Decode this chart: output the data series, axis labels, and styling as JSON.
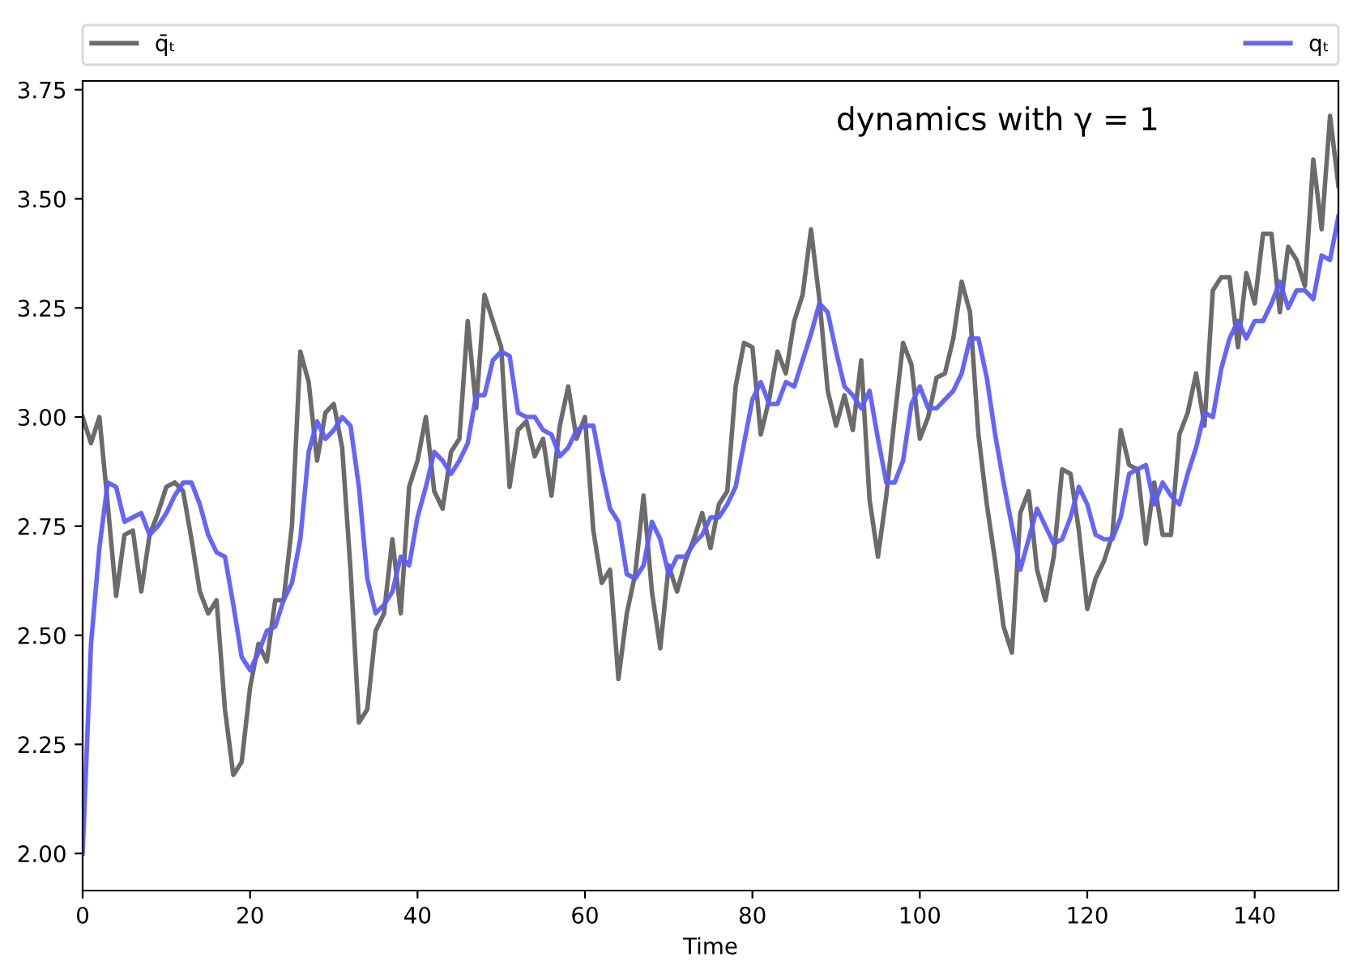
{
  "chart_data": {
    "type": "line",
    "xlabel": "Time",
    "annotations": [
      "dynamics with γ = 1"
    ],
    "x": [
      0,
      1,
      2,
      3,
      4,
      5,
      6,
      7,
      8,
      9,
      10,
      11,
      12,
      13,
      14,
      15,
      16,
      17,
      18,
      19,
      20,
      21,
      22,
      23,
      24,
      25,
      26,
      27,
      28,
      29,
      30,
      31,
      32,
      33,
      34,
      35,
      36,
      37,
      38,
      39,
      40,
      41,
      42,
      43,
      44,
      45,
      46,
      47,
      48,
      49,
      50,
      51,
      52,
      53,
      54,
      55,
      56,
      57,
      58,
      59,
      60,
      61,
      62,
      63,
      64,
      65,
      66,
      67,
      68,
      69,
      70,
      71,
      72,
      73,
      74,
      75,
      76,
      77,
      78,
      79,
      80,
      81,
      82,
      83,
      84,
      85,
      86,
      87,
      88,
      89,
      90,
      91,
      92,
      93,
      94,
      95,
      96,
      97,
      98,
      99,
      100,
      101,
      102,
      103,
      104,
      105,
      106,
      107,
      108,
      109,
      110,
      111,
      112,
      113,
      114,
      115,
      116,
      117,
      118,
      119,
      120,
      121,
      122,
      123,
      124,
      125,
      126,
      127,
      128,
      129,
      130,
      131,
      132,
      133,
      134,
      135,
      136,
      137,
      138,
      139,
      140,
      141,
      142,
      143,
      144,
      145,
      146,
      147,
      148,
      149,
      150
    ],
    "series": [
      {
        "name": "q̄ₜ",
        "color": "#636363",
        "values": [
          3.0,
          2.94,
          3.0,
          2.8,
          2.59,
          2.73,
          2.74,
          2.6,
          2.73,
          2.78,
          2.84,
          2.85,
          2.83,
          2.72,
          2.6,
          2.55,
          2.58,
          2.33,
          2.18,
          2.21,
          2.38,
          2.48,
          2.44,
          2.58,
          2.58,
          2.75,
          3.15,
          3.08,
          2.9,
          3.01,
          3.03,
          2.93,
          2.65,
          2.3,
          2.33,
          2.51,
          2.55,
          2.72,
          2.55,
          2.84,
          2.9,
          3.0,
          2.83,
          2.79,
          2.92,
          2.95,
          3.22,
          3.02,
          3.28,
          3.22,
          3.16,
          2.84,
          2.97,
          2.99,
          2.91,
          2.95,
          2.82,
          2.98,
          3.07,
          2.95,
          3.0,
          2.74,
          2.62,
          2.65,
          2.4,
          2.55,
          2.64,
          2.82,
          2.6,
          2.47,
          2.66,
          2.6,
          2.67,
          2.72,
          2.78,
          2.7,
          2.8,
          2.83,
          3.07,
          3.17,
          3.16,
          2.96,
          3.04,
          3.15,
          3.1,
          3.22,
          3.28,
          3.43,
          3.27,
          3.06,
          2.98,
          3.05,
          2.97,
          3.13,
          2.81,
          2.68,
          2.82,
          3.0,
          3.17,
          3.12,
          2.95,
          3.0,
          3.09,
          3.1,
          3.18,
          3.31,
          3.24,
          2.96,
          2.8,
          2.67,
          2.52,
          2.46,
          2.78,
          2.83,
          2.65,
          2.58,
          2.68,
          2.88,
          2.87,
          2.74,
          2.56,
          2.63,
          2.67,
          2.73,
          2.97,
          2.89,
          2.88,
          2.71,
          2.85,
          2.73,
          2.73,
          2.96,
          3.01,
          3.1,
          2.98,
          3.29,
          3.32,
          3.32,
          3.16,
          3.33,
          3.26,
          3.42,
          3.42,
          3.24,
          3.39,
          3.36,
          3.3,
          3.59,
          3.43,
          3.69,
          3.53
        ]
      },
      {
        "name": "qₜ",
        "color": "#5c5cff",
        "values": [
          2.0,
          2.48,
          2.7,
          2.85,
          2.84,
          2.76,
          2.77,
          2.78,
          2.73,
          2.75,
          2.78,
          2.82,
          2.85,
          2.85,
          2.8,
          2.73,
          2.69,
          2.68,
          2.57,
          2.45,
          2.42,
          2.46,
          2.51,
          2.52,
          2.58,
          2.62,
          2.72,
          2.92,
          2.99,
          2.95,
          2.97,
          3.0,
          2.98,
          2.84,
          2.63,
          2.55,
          2.57,
          2.6,
          2.68,
          2.66,
          2.77,
          2.84,
          2.92,
          2.9,
          2.87,
          2.9,
          2.94,
          3.05,
          3.05,
          3.13,
          3.15,
          3.14,
          3.01,
          3.0,
          3.0,
          2.97,
          2.96,
          2.91,
          2.93,
          2.97,
          2.98,
          2.98,
          2.88,
          2.79,
          2.76,
          2.64,
          2.63,
          2.66,
          2.76,
          2.72,
          2.64,
          2.68,
          2.68,
          2.71,
          2.73,
          2.77,
          2.77,
          2.8,
          2.84,
          2.94,
          3.04,
          3.08,
          3.03,
          3.03,
          3.08,
          3.07,
          3.13,
          3.19,
          3.26,
          3.24,
          3.15,
          3.07,
          3.05,
          3.02,
          3.06,
          2.95,
          2.85,
          2.85,
          2.9,
          3.03,
          3.07,
          3.02,
          3.02,
          3.04,
          3.06,
          3.1,
          3.18,
          3.18,
          3.09,
          2.96,
          2.85,
          2.75,
          2.65,
          2.72,
          2.79,
          2.75,
          2.71,
          2.72,
          2.77,
          2.84,
          2.8,
          2.73,
          2.72,
          2.72,
          2.77,
          2.87,
          2.88,
          2.89,
          2.8,
          2.85,
          2.82,
          2.8,
          2.87,
          2.93,
          3.01,
          3.0,
          3.11,
          3.18,
          3.22,
          3.18,
          3.22,
          3.22,
          3.26,
          3.31,
          3.25,
          3.29,
          3.29,
          3.27,
          3.37,
          3.36,
          3.46
        ]
      }
    ],
    "xlim": [
      0,
      150
    ],
    "xticks": [
      0,
      20,
      40,
      60,
      80,
      100,
      120,
      140
    ],
    "ylim": [
      1.915,
      3.77
    ],
    "yticks": [
      {
        "value": 2.0,
        "label": "2.00"
      },
      {
        "value": 2.25,
        "label": "2.25"
      },
      {
        "value": 2.5,
        "label": "2.50"
      },
      {
        "value": 2.75,
        "label": "2.75"
      },
      {
        "value": 3.0,
        "label": "3.00"
      },
      {
        "value": 3.25,
        "label": "3.25"
      },
      {
        "value": 3.5,
        "label": "3.50"
      },
      {
        "value": 3.75,
        "label": "3.75"
      }
    ],
    "legend": "top",
    "grid": false,
    "line_style": "solid",
    "marker": "none"
  }
}
